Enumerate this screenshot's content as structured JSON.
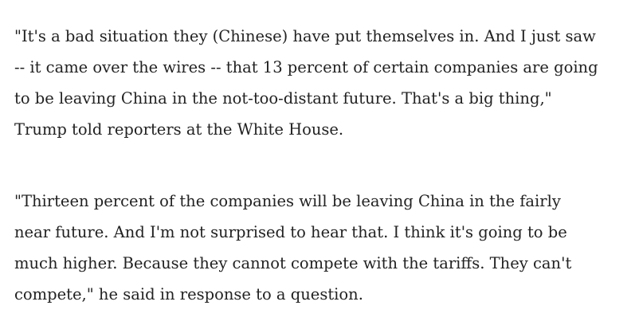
{
  "paragraphs": [
    {
      "lines": [
        "\"It's a bad situation they (Chinese) have put themselves in. And I just saw",
        "-- it came over the wires -- that 13 percent of certain companies are going",
        "to be leaving China in the not-too-distant future. That's a big thing,\"",
        "Trump told reporters at the White House."
      ]
    },
    {
      "lines": [
        "\"Thirteen percent of the companies will be leaving China in the fairly",
        "near future. And I'm not surprised to hear that. I think it's going to be",
        "much higher. Because they cannot compete with the tariffs. They can't",
        "compete,\" he said in response to a question."
      ]
    }
  ]
}
